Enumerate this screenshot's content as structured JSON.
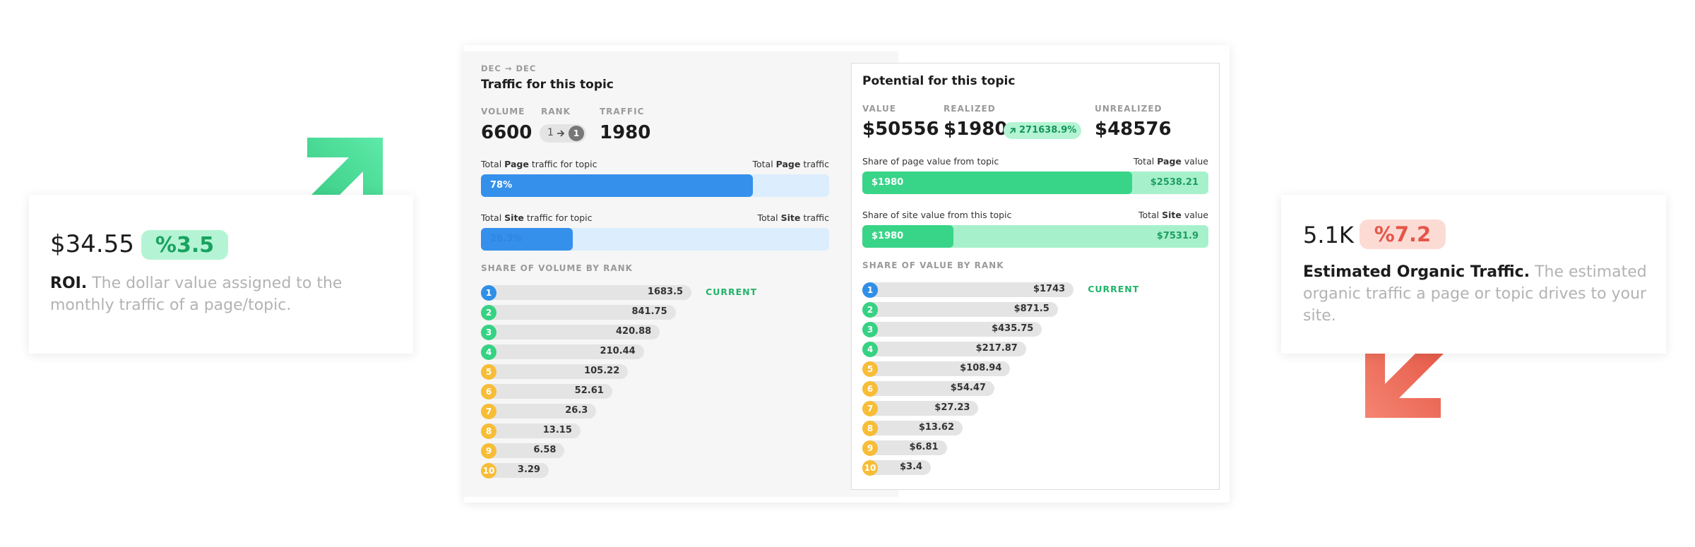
{
  "roi_card": {
    "value": "$34.55",
    "badge": "%3.5",
    "title": "ROI.",
    "description": "The dollar value assigned to the monthly traffic of a page/topic."
  },
  "traffic_card": {
    "value": "5.1K",
    "badge": "%7.2",
    "title": "Estimated Organic Traffic.",
    "description": "The estimated organic traffic a page or topic drives to your site."
  },
  "traffic_panel": {
    "period": "DEC → DEC",
    "title": "Traffic for this topic",
    "stats": {
      "volume_label": "VOLUME",
      "volume": 6600,
      "rank_label": "RANK",
      "rank_from": 1,
      "rank_to": 1,
      "traffic_label": "TRAFFIC",
      "traffic": 1980
    },
    "page_bar": {
      "label_parts": [
        "Total ",
        "Page",
        " traffic for topic"
      ],
      "total_parts": [
        "Total ",
        "Page",
        " traffic"
      ],
      "value": 78,
      "value_label": "78%"
    },
    "site_bar": {
      "label_parts": [
        "Total ",
        "Site",
        " traffic for topic"
      ],
      "total_parts": [
        "Total ",
        "Site",
        " traffic"
      ],
      "value": 26.3,
      "value_label": "26.3%"
    },
    "rank_title": "SHARE OF VOLUME BY RANK",
    "rows": [
      {
        "rank": 1,
        "value": 1683.5,
        "tag": "CURRENT"
      },
      {
        "rank": 2,
        "value": 841.75
      },
      {
        "rank": 3,
        "value": 420.88
      },
      {
        "rank": 4,
        "value": 210.44
      },
      {
        "rank": 5,
        "value": 105.22
      },
      {
        "rank": 6,
        "value": 52.61
      },
      {
        "rank": 7,
        "value": 26.3
      },
      {
        "rank": 8,
        "value": 13.15
      },
      {
        "rank": 9,
        "value": 6.58
      },
      {
        "rank": 10,
        "value": 3.29
      }
    ]
  },
  "potential_panel": {
    "title": "Potential for this topic",
    "stats": {
      "value_label": "VALUE",
      "value": "$50556",
      "realized_label": "REALIZED",
      "realized": "$1980",
      "realized_badge": "271638.9%",
      "unrealized_label": "UNREALIZED",
      "unrealized": "$48576"
    },
    "page_bar": {
      "label_parts": [
        "Share of page value from topic"
      ],
      "total_parts": [
        "Total ",
        "Page",
        " value"
      ],
      "value": 1980,
      "value_label": "$1980",
      "total": 2538.21,
      "total_label": "$2538.21"
    },
    "site_bar": {
      "label_parts": [
        "Share of site value from this topic"
      ],
      "total_parts": [
        "Total ",
        "Site",
        " value"
      ],
      "value": 1980,
      "value_label": "$1980",
      "total": 7531.9,
      "total_label": "$7531.9"
    },
    "rank_title": "SHARE OF VALUE BY RANK",
    "rows": [
      {
        "rank": 1,
        "value": 1743,
        "label": "$1743",
        "tag": "CURRENT"
      },
      {
        "rank": 2,
        "value": 871.5,
        "label": "$871.5"
      },
      {
        "rank": 3,
        "value": 435.75,
        "label": "$435.75"
      },
      {
        "rank": 4,
        "value": 217.87,
        "label": "$217.87"
      },
      {
        "rank": 5,
        "value": 108.94,
        "label": "$108.94"
      },
      {
        "rank": 6,
        "value": 54.47,
        "label": "$54.47"
      },
      {
        "rank": 7,
        "value": 27.23,
        "label": "$27.23"
      },
      {
        "rank": 8,
        "value": 13.62,
        "label": "$13.62"
      },
      {
        "rank": 9,
        "value": 6.81,
        "label": "$6.81"
      },
      {
        "rank": 10,
        "value": 3.4,
        "label": "$3.4"
      }
    ]
  }
}
